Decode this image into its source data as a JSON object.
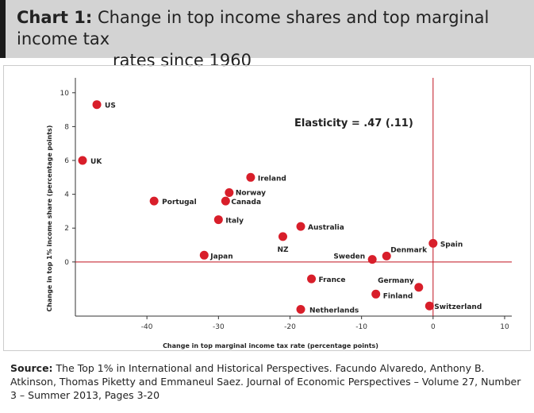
{
  "header": {
    "chart_number": "Chart 1:",
    "title_line1": "Change in top income shares and top marginal income tax",
    "title_line2": "rates since 1960"
  },
  "chart_data": {
    "type": "scatter",
    "xlabel": "Change in top marginal income tax rate (percentage points)",
    "ylabel": "Change in top 1% income share (percentage points)",
    "xlim": [
      -50,
      11
    ],
    "ylim": [
      -3.2,
      10.6
    ],
    "x_ticks": [
      -40,
      -30,
      -20,
      -10,
      0,
      10
    ],
    "y_ticks": [
      0,
      2,
      4,
      6,
      8,
      10
    ],
    "annotation": "Elasticity = .47 (.11)",
    "marker_color": "#d81e2a",
    "reference_line_color": "#c0121f",
    "points": [
      {
        "label": "US",
        "x": -47,
        "y": 9.3
      },
      {
        "label": "UK",
        "x": -49,
        "y": 6.0
      },
      {
        "label": "Ireland",
        "x": -25.5,
        "y": 5.0
      },
      {
        "label": "Norway",
        "x": -28.5,
        "y": 4.1
      },
      {
        "label": "Canada",
        "x": -29,
        "y": 3.6
      },
      {
        "label": "Portugal",
        "x": -39,
        "y": 3.6
      },
      {
        "label": "Italy",
        "x": -30,
        "y": 2.5
      },
      {
        "label": "Australia",
        "x": -18.5,
        "y": 2.1
      },
      {
        "label": "NZ",
        "x": -21,
        "y": 1.5
      },
      {
        "label": "Japan",
        "x": -32,
        "y": 0.4
      },
      {
        "label": "Spain",
        "x": 0,
        "y": 1.1
      },
      {
        "label": "Sweden",
        "x": -8.5,
        "y": 0.15
      },
      {
        "label": "Denmark",
        "x": -6.5,
        "y": 0.35
      },
      {
        "label": "France",
        "x": -17,
        "y": -1.0
      },
      {
        "label": "Germany",
        "x": -2,
        "y": -1.5
      },
      {
        "label": "Finland",
        "x": -8,
        "y": -1.9
      },
      {
        "label": "Switzerland",
        "x": -0.5,
        "y": -2.6
      },
      {
        "label": "Netherlands",
        "x": -18.5,
        "y": -2.8
      }
    ]
  },
  "source": {
    "label": "Source:",
    "text": " The Top 1% in International and Historical Perspectives. Facundo Alvaredo, Anthony B. Atkinson, Thomas Piketty and Emmaneul Saez. Journal of Economic Perspectives – Volume 27, Number 3 – Summer 2013, Pages 3-20"
  }
}
